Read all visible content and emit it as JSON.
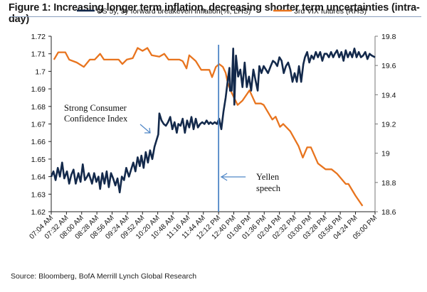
{
  "figure": {
    "title": "Figure 1: Increasing longer term inflation, decreasing shorter term uncertainties (intra-day)",
    "source": "Source: Bloomberg, BofA Merrill Lynch Global Research"
  },
  "chart_data": {
    "type": "line",
    "title": "Figure 1: Increasing longer term inflation, decreasing shorter term uncertainties (intra-day)",
    "xlabel": "",
    "ylabel_left": "",
    "ylabel_right": "",
    "x_tick_labels": [
      "07:04 AM",
      "07:32 AM",
      "08:00 AM",
      "08:28 AM",
      "08:56 AM",
      "09:24 AM",
      "09:52 AM",
      "10:20 AM",
      "10:48 AM",
      "11:16 AM",
      "11:44 AM",
      "12:12 PM",
      "12:40 PM",
      "01:08 PM",
      "01:36 PM",
      "02:04 PM",
      "02:32 PM",
      "03:00 PM",
      "03:28 PM",
      "03:56 PM",
      "04:24 PM",
      "05:00 PM"
    ],
    "x_tick_minutes": [
      0,
      28,
      56,
      84,
      112,
      140,
      168,
      196,
      224,
      252,
      280,
      308,
      336,
      364,
      392,
      420,
      448,
      476,
      504,
      532,
      560,
      596
    ],
    "x_unit": "minutes since 07:04 AM",
    "xlim": [
      0,
      596
    ],
    "ylim_left": [
      1.62,
      1.72
    ],
    "y_ticks_left": [
      "1.62",
      "1.63",
      "1.64",
      "1.65",
      "1.66",
      "1.67",
      "1.68",
      "1.69",
      "1.7",
      "1.71",
      "1.72"
    ],
    "ylim_right": [
      18.6,
      19.8
    ],
    "y_ticks_right": [
      "18.6",
      "18.8",
      "19",
      "19.2",
      "19.4",
      "19.6",
      "19.8"
    ],
    "grid": false,
    "legend_position": "top",
    "colors": {
      "series_blue": "#13294b",
      "series_orange": "#e8741e",
      "annotation": "#4f86c6"
    },
    "series": [
      {
        "name": "US 5y, 5y forward breakeven inflation(%, LHS)",
        "axis": "left",
        "points": [
          [
            0,
            1.64
          ],
          [
            4,
            1.643
          ],
          [
            8,
            1.638
          ],
          [
            12,
            1.645
          ],
          [
            16,
            1.64
          ],
          [
            20,
            1.648
          ],
          [
            24,
            1.639
          ],
          [
            29,
            1.643
          ],
          [
            33,
            1.636
          ],
          [
            37,
            1.641
          ],
          [
            41,
            1.644
          ],
          [
            45,
            1.636
          ],
          [
            50,
            1.642
          ],
          [
            54,
            1.637
          ],
          [
            58,
            1.647
          ],
          [
            62,
            1.638
          ],
          [
            66,
            1.64
          ],
          [
            69,
            1.642
          ],
          [
            75,
            1.636
          ],
          [
            79,
            1.642
          ],
          [
            83,
            1.637
          ],
          [
            87,
            1.64
          ],
          [
            90,
            1.633
          ],
          [
            94,
            1.642
          ],
          [
            98,
            1.636
          ],
          [
            102,
            1.643
          ],
          [
            106,
            1.634
          ],
          [
            110,
            1.642
          ],
          [
            114,
            1.639
          ],
          [
            118,
            1.635
          ],
          [
            122,
            1.639
          ],
          [
            126,
            1.631
          ],
          [
            130,
            1.64
          ],
          [
            134,
            1.638
          ],
          [
            138,
            1.645
          ],
          [
            143,
            1.64
          ],
          [
            147,
            1.644
          ],
          [
            151,
            1.648
          ],
          [
            155,
            1.643
          ],
          [
            159,
            1.651
          ],
          [
            163,
            1.646
          ],
          [
            166,
            1.652
          ],
          [
            170,
            1.645
          ],
          [
            174,
            1.654
          ],
          [
            178,
            1.648
          ],
          [
            182,
            1.655
          ],
          [
            186,
            1.65
          ],
          [
            190,
            1.657
          ],
          [
            194,
            1.661
          ],
          [
            197,
            1.664
          ],
          [
            199,
            1.676
          ],
          [
            203,
            1.672
          ],
          [
            207,
            1.67
          ],
          [
            211,
            1.669
          ],
          [
            215,
            1.671
          ],
          [
            219,
            1.674
          ],
          [
            223,
            1.667
          ],
          [
            227,
            1.671
          ],
          [
            231,
            1.665
          ],
          [
            234,
            1.67
          ],
          [
            238,
            1.669
          ],
          [
            242,
            1.673
          ],
          [
            246,
            1.665
          ],
          [
            250,
            1.672
          ],
          [
            254,
            1.668
          ],
          [
            258,
            1.674
          ],
          [
            262,
            1.667
          ],
          [
            266,
            1.673
          ],
          [
            270,
            1.668
          ],
          [
            274,
            1.67
          ],
          [
            278,
            1.671
          ],
          [
            282,
            1.67
          ],
          [
            286,
            1.672
          ],
          [
            290,
            1.67
          ],
          [
            293,
            1.671
          ],
          [
            297,
            1.67
          ],
          [
            301,
            1.671
          ],
          [
            305,
            1.67
          ],
          [
            309,
            1.673
          ],
          [
            313,
            1.667
          ],
          [
            317,
            1.677
          ],
          [
            321,
            1.685
          ],
          [
            325,
            1.695
          ],
          [
            328,
            1.702
          ],
          [
            329,
            1.689
          ],
          [
            332,
            1.689
          ],
          [
            335,
            1.713
          ],
          [
            337,
            1.681
          ],
          [
            340,
            1.709
          ],
          [
            344,
            1.697
          ],
          [
            348,
            1.701
          ],
          [
            352,
            1.691
          ],
          [
            356,
            1.705
          ],
          [
            360,
            1.691
          ],
          [
            364,
            1.697
          ],
          [
            368,
            1.689
          ],
          [
            372,
            1.701
          ],
          [
            376,
            1.695
          ],
          [
            380,
            1.689
          ],
          [
            383,
            1.703
          ],
          [
            387,
            1.699
          ],
          [
            391,
            1.703
          ],
          [
            395,
            1.701
          ],
          [
            399,
            1.699
          ],
          [
            404,
            1.703
          ],
          [
            408,
            1.706
          ],
          [
            412,
            1.705
          ],
          [
            416,
            1.703
          ],
          [
            420,
            1.708
          ],
          [
            424,
            1.706
          ],
          [
            428,
            1.699
          ],
          [
            432,
            1.703
          ],
          [
            436,
            1.705
          ],
          [
            440,
            1.701
          ],
          [
            444,
            1.694
          ],
          [
            448,
            1.699
          ],
          [
            452,
            1.694
          ],
          [
            456,
            1.703
          ],
          [
            460,
            1.694
          ],
          [
            464,
            1.704
          ],
          [
            467,
            1.708
          ],
          [
            471,
            1.711
          ],
          [
            475,
            1.705
          ],
          [
            479,
            1.709
          ],
          [
            483,
            1.707
          ],
          [
            487,
            1.711
          ],
          [
            491,
            1.708
          ],
          [
            495,
            1.711
          ],
          [
            499,
            1.706
          ],
          [
            503,
            1.71
          ],
          [
            507,
            1.71
          ],
          [
            511,
            1.708
          ],
          [
            515,
            1.711
          ],
          [
            519,
            1.708
          ],
          [
            522,
            1.71
          ],
          [
            526,
            1.712
          ],
          [
            530,
            1.708
          ],
          [
            534,
            1.711
          ],
          [
            538,
            1.706
          ],
          [
            542,
            1.712
          ],
          [
            546,
            1.708
          ],
          [
            550,
            1.711
          ],
          [
            554,
            1.708
          ],
          [
            558,
            1.713
          ],
          [
            562,
            1.708
          ],
          [
            566,
            1.711
          ],
          [
            570,
            1.708
          ],
          [
            574,
            1.709
          ],
          [
            578,
            1.711
          ],
          [
            582,
            1.707
          ],
          [
            586,
            1.71
          ],
          [
            590,
            1.709
          ],
          [
            596,
            1.708
          ]
        ]
      },
      {
        "name": "3rd VIX futures (RHS)",
        "axis": "right",
        "points": [
          [
            5,
            19.64
          ],
          [
            13,
            19.69
          ],
          [
            26,
            19.69
          ],
          [
            33,
            19.64
          ],
          [
            47,
            19.62
          ],
          [
            60,
            19.59
          ],
          [
            71,
            19.64
          ],
          [
            80,
            19.64
          ],
          [
            90,
            19.68
          ],
          [
            97,
            19.64
          ],
          [
            109,
            19.64
          ],
          [
            124,
            19.64
          ],
          [
            131,
            19.61
          ],
          [
            139,
            19.64
          ],
          [
            150,
            19.65
          ],
          [
            159,
            19.72
          ],
          [
            168,
            19.7
          ],
          [
            177,
            19.72
          ],
          [
            185,
            19.67
          ],
          [
            199,
            19.66
          ],
          [
            208,
            19.68
          ],
          [
            216,
            19.64
          ],
          [
            236,
            19.64
          ],
          [
            242,
            19.63
          ],
          [
            249,
            19.58
          ],
          [
            254,
            19.67
          ],
          [
            266,
            19.63
          ],
          [
            276,
            19.57
          ],
          [
            291,
            19.57
          ],
          [
            296,
            19.52
          ],
          [
            303,
            19.59
          ],
          [
            309,
            19.61
          ],
          [
            316,
            19.59
          ],
          [
            321,
            19.55
          ],
          [
            325,
            19.48
          ],
          [
            330,
            19.43
          ],
          [
            343,
            19.33
          ],
          [
            352,
            19.36
          ],
          [
            365,
            19.43
          ],
          [
            376,
            19.34
          ],
          [
            386,
            19.34
          ],
          [
            391,
            19.33
          ],
          [
            407,
            19.23
          ],
          [
            413,
            19.25
          ],
          [
            421,
            19.18
          ],
          [
            427,
            19.2
          ],
          [
            440,
            19.15
          ],
          [
            455,
            19.05
          ],
          [
            463,
            18.97
          ],
          [
            471,
            19.04
          ],
          [
            478,
            19.04
          ],
          [
            491,
            18.93
          ],
          [
            505,
            18.89
          ],
          [
            516,
            18.89
          ],
          [
            526,
            18.86
          ],
          [
            542,
            18.79
          ],
          [
            547,
            18.79
          ],
          [
            560,
            18.71
          ],
          [
            573,
            18.64
          ]
        ]
      }
    ],
    "annotations": [
      {
        "text_lines": [
          "Strong Consumer",
          "Confidence Index"
        ],
        "points_to_minutes": 195
      },
      {
        "text_lines": [
          "Yellen",
          "speech"
        ],
        "vertical_line_minutes": 308
      }
    ]
  }
}
